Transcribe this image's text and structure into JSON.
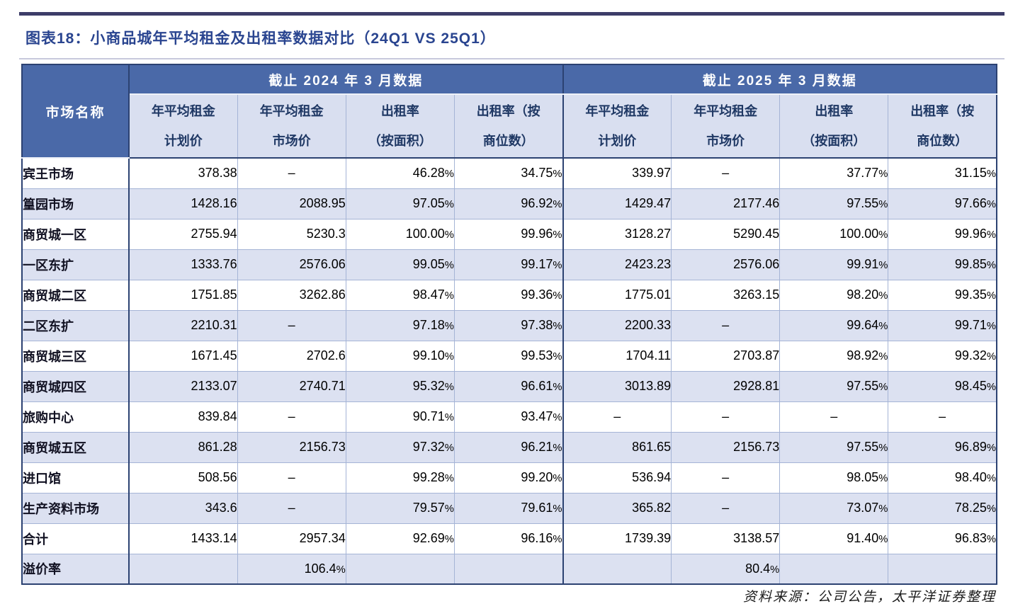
{
  "page": {
    "title": "图表18：小商品城年平均租金及出租率数据对比（24Q1 VS 25Q1）",
    "source_note": "资料来源：公司公告，太平洋证券整理"
  },
  "table": {
    "corner_label": "市场名称",
    "groups": [
      {
        "label": "截止 2024 年 3 月数据"
      },
      {
        "label": "截止 2025 年 3 月数据"
      }
    ],
    "sub_headers": [
      "年平均租金\n计划价",
      "年平均租金\n市场价",
      "出租率\n（按面积）",
      "出租率（按\n商位数）"
    ],
    "rows": [
      {
        "name": "宾王市场",
        "y2024": [
          "378.38",
          "–",
          "46.28%",
          "34.75%"
        ],
        "y2025": [
          "339.97",
          "–",
          "37.77%",
          "31.15%"
        ]
      },
      {
        "name": "篁园市场",
        "y2024": [
          "1428.16",
          "2088.95",
          "97.05%",
          "96.92%"
        ],
        "y2025": [
          "1429.47",
          "2177.46",
          "97.55%",
          "97.66%"
        ]
      },
      {
        "name": "商贸城一区",
        "y2024": [
          "2755.94",
          "5230.3",
          "100.00%",
          "99.96%"
        ],
        "y2025": [
          "3128.27",
          "5290.45",
          "100.00%",
          "99.96%"
        ]
      },
      {
        "name": "一区东扩",
        "y2024": [
          "1333.76",
          "2576.06",
          "99.05%",
          "99.17%"
        ],
        "y2025": [
          "2423.23",
          "2576.06",
          "99.91%",
          "99.85%"
        ]
      },
      {
        "name": "商贸城二区",
        "y2024": [
          "1751.85",
          "3262.86",
          "98.47%",
          "99.36%"
        ],
        "y2025": [
          "1775.01",
          "3263.15",
          "98.20%",
          "99.35%"
        ]
      },
      {
        "name": "二区东扩",
        "y2024": [
          "2210.31",
          "–",
          "97.18%",
          "97.38%"
        ],
        "y2025": [
          "2200.33",
          "–",
          "99.64%",
          "99.71%"
        ]
      },
      {
        "name": "商贸城三区",
        "y2024": [
          "1671.45",
          "2702.6",
          "99.10%",
          "99.53%"
        ],
        "y2025": [
          "1704.11",
          "2703.87",
          "98.92%",
          "99.32%"
        ]
      },
      {
        "name": "商贸城四区",
        "y2024": [
          "2133.07",
          "2740.71",
          "95.32%",
          "96.61%"
        ],
        "y2025": [
          "3013.89",
          "2928.81",
          "97.55%",
          "98.45%"
        ]
      },
      {
        "name": "旅购中心",
        "y2024": [
          "839.84",
          "–",
          "90.71%",
          "93.47%"
        ],
        "y2025": [
          "–",
          "–",
          "–",
          "–"
        ]
      },
      {
        "name": "商贸城五区",
        "y2024": [
          "861.28",
          "2156.73",
          "97.32%",
          "96.21%"
        ],
        "y2025": [
          "861.65",
          "2156.73",
          "97.55%",
          "96.89%"
        ]
      },
      {
        "name": "进口馆",
        "y2024": [
          "508.56",
          "–",
          "99.28%",
          "99.20%"
        ],
        "y2025": [
          "536.94",
          "–",
          "98.05%",
          "98.40%"
        ]
      },
      {
        "name": "生产资料市场",
        "y2024": [
          "343.6",
          "–",
          "79.57%",
          "79.61%"
        ],
        "y2025": [
          "365.82",
          "–",
          "73.07%",
          "78.25%"
        ]
      },
      {
        "name": "合计",
        "y2024": [
          "1433.14",
          "2957.34",
          "92.69%",
          "96.16%"
        ],
        "y2025": [
          "1739.39",
          "3138.57",
          "91.40%",
          "96.83%"
        ]
      },
      {
        "name": "溢价率",
        "y2024": [
          "",
          "106.4%",
          "",
          ""
        ],
        "y2025": [
          "",
          "80.4%",
          "",
          ""
        ]
      }
    ]
  }
}
